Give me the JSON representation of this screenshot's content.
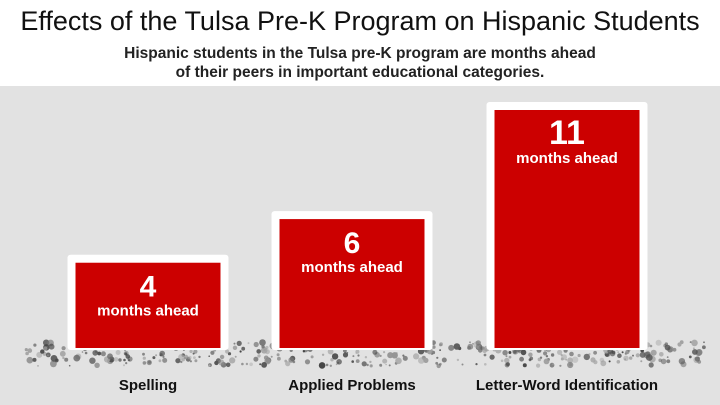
{
  "header": {
    "title": "Effects of the Tulsa Pre-K Program on Hispanic Students",
    "subtitle_line1": "Hispanic students in the Tulsa pre-K program are months ahead",
    "subtitle_line2": "of their peers in important  educational categories."
  },
  "colors": {
    "bar": "#cc0000",
    "bar_frame": "#ffffff",
    "background": "#e2e2e2",
    "ground_debris": "#555555"
  },
  "chart_data": {
    "type": "bar",
    "title": "Effects of the Tulsa Pre-K Program on Hispanic Students",
    "subtitle": "Hispanic students in the Tulsa pre-K program are months ahead of their peers in important  educational categories.",
    "categories": [
      "Spelling",
      "Applied Problems",
      "Letter-Word Identification"
    ],
    "values": [
      4,
      6,
      11
    ],
    "value_labels": [
      "4",
      "6",
      "11"
    ],
    "unit_label": "months ahead",
    "xlabel": "",
    "ylabel": "",
    "ylim": [
      0,
      11
    ],
    "grid": false,
    "legend": "none"
  }
}
